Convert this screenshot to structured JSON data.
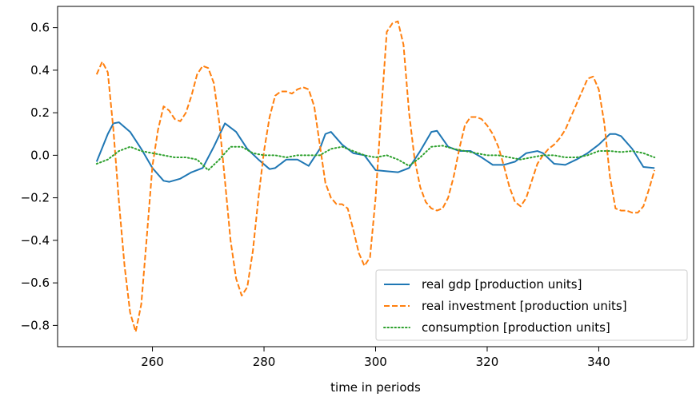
{
  "chart_data": {
    "type": "line",
    "title": "",
    "xlabel": "time in periods",
    "ylabel": "",
    "xlim": [
      243,
      357
    ],
    "ylim": [
      -0.9,
      0.7
    ],
    "xticks": [
      260,
      280,
      300,
      320,
      340
    ],
    "xtick_labels": [
      "260",
      "280",
      "300",
      "320",
      "340"
    ],
    "yticks": [
      -0.8,
      -0.6,
      -0.4,
      -0.2,
      0.0,
      0.2,
      0.4,
      0.6
    ],
    "ytick_labels": [
      "−0.8",
      "−0.6",
      "−0.4",
      "−0.2",
      "0.0",
      "0.2",
      "0.4",
      "0.6"
    ],
    "grid": false,
    "legend_position": "bottom-right",
    "series": [
      {
        "name": "real gdp [production units]",
        "color": "#1f77b4",
        "style": "solid",
        "x": [
          250,
          252,
          253,
          254,
          256,
          258,
          260,
          262,
          263,
          265,
          267,
          269,
          271,
          273,
          275,
          277,
          279,
          281,
          282,
          284,
          286,
          288,
          290,
          291,
          292,
          294,
          296,
          298,
          300,
          302,
          304,
          306,
          308,
          310,
          311,
          313,
          315,
          317,
          319,
          321,
          323,
          325,
          327,
          329,
          330,
          332,
          334,
          336,
          338,
          340,
          342,
          343,
          344,
          346,
          348,
          350
        ],
        "y": [
          -0.03,
          0.1,
          0.15,
          0.155,
          0.11,
          0.03,
          -0.06,
          -0.12,
          -0.125,
          -0.11,
          -0.08,
          -0.06,
          0.04,
          0.15,
          0.11,
          0.03,
          -0.02,
          -0.065,
          -0.06,
          -0.02,
          -0.02,
          -0.05,
          0.03,
          0.1,
          0.11,
          0.05,
          0.01,
          0.0,
          -0.07,
          -0.075,
          -0.08,
          -0.06,
          0.02,
          0.11,
          0.115,
          0.04,
          0.02,
          0.02,
          -0.01,
          -0.045,
          -0.045,
          -0.03,
          0.01,
          0.02,
          0.01,
          -0.04,
          -0.045,
          -0.02,
          0.01,
          0.05,
          0.1,
          0.1,
          0.09,
          0.03,
          -0.055,
          -0.06
        ]
      },
      {
        "name": "real investment [production units]",
        "color": "#ff7f0e",
        "style": "dashed",
        "x": [
          250,
          251,
          252,
          253,
          254,
          255,
          256,
          257,
          258,
          259,
          260,
          261,
          262,
          263,
          264,
          265,
          266,
          267,
          268,
          269,
          270,
          271,
          272,
          273,
          274,
          275,
          276,
          277,
          278,
          279,
          280,
          281,
          282,
          283,
          284,
          285,
          286,
          287,
          288,
          289,
          290,
          291,
          292,
          293,
          294,
          295,
          296,
          297,
          298,
          299,
          300,
          301,
          302,
          303,
          304,
          305,
          306,
          307,
          308,
          309,
          310,
          311,
          312,
          313,
          314,
          315,
          316,
          317,
          318,
          319,
          320,
          321,
          322,
          323,
          324,
          325,
          326,
          327,
          328,
          329,
          330,
          331,
          332,
          333,
          334,
          335,
          336,
          337,
          338,
          339,
          340,
          341,
          342,
          343,
          344,
          345,
          346,
          347,
          348,
          349,
          350
        ],
        "y": [
          0.38,
          0.44,
          0.39,
          0.12,
          -0.22,
          -0.52,
          -0.74,
          -0.83,
          -0.7,
          -0.38,
          -0.05,
          0.12,
          0.23,
          0.21,
          0.17,
          0.16,
          0.2,
          0.28,
          0.38,
          0.42,
          0.41,
          0.34,
          0.15,
          -0.12,
          -0.4,
          -0.58,
          -0.66,
          -0.62,
          -0.45,
          -0.2,
          0.02,
          0.18,
          0.28,
          0.3,
          0.3,
          0.29,
          0.31,
          0.32,
          0.31,
          0.23,
          0.05,
          -0.13,
          -0.2,
          -0.23,
          -0.23,
          -0.25,
          -0.35,
          -0.46,
          -0.52,
          -0.48,
          -0.2,
          0.2,
          0.58,
          0.62,
          0.63,
          0.52,
          0.2,
          -0.02,
          -0.15,
          -0.22,
          -0.25,
          -0.26,
          -0.25,
          -0.2,
          -0.1,
          0.03,
          0.14,
          0.18,
          0.18,
          0.17,
          0.14,
          0.1,
          0.04,
          -0.05,
          -0.15,
          -0.22,
          -0.24,
          -0.2,
          -0.12,
          -0.04,
          0.0,
          0.03,
          0.05,
          0.08,
          0.12,
          0.18,
          0.24,
          0.3,
          0.36,
          0.37,
          0.31,
          0.15,
          -0.1,
          -0.25,
          -0.26,
          -0.26,
          -0.27,
          -0.27,
          -0.24,
          -0.16,
          -0.07
        ]
      },
      {
        "name": "consumption [production units]",
        "color": "#2ca02c",
        "style": "dotted",
        "x": [
          250,
          252,
          254,
          256,
          258,
          260,
          262,
          264,
          266,
          268,
          270,
          272,
          274,
          276,
          278,
          280,
          282,
          284,
          286,
          288,
          290,
          292,
          294,
          296,
          298,
          300,
          302,
          304,
          306,
          308,
          310,
          312,
          314,
          316,
          318,
          320,
          322,
          324,
          326,
          328,
          330,
          332,
          334,
          336,
          338,
          340,
          342,
          344,
          346,
          348,
          350
        ],
        "y": [
          -0.04,
          -0.02,
          0.02,
          0.04,
          0.02,
          0.01,
          0.0,
          -0.01,
          -0.01,
          -0.02,
          -0.07,
          -0.02,
          0.04,
          0.04,
          0.01,
          0.0,
          0.0,
          -0.01,
          0.0,
          0.0,
          0.0,
          0.03,
          0.04,
          0.02,
          0.0,
          -0.01,
          0.0,
          -0.02,
          -0.05,
          -0.01,
          0.04,
          0.045,
          0.03,
          0.02,
          0.01,
          0.0,
          0.0,
          -0.01,
          -0.02,
          -0.01,
          0.0,
          0.0,
          -0.01,
          -0.01,
          0.0,
          0.02,
          0.02,
          0.015,
          0.02,
          0.01,
          -0.01
        ]
      }
    ]
  }
}
